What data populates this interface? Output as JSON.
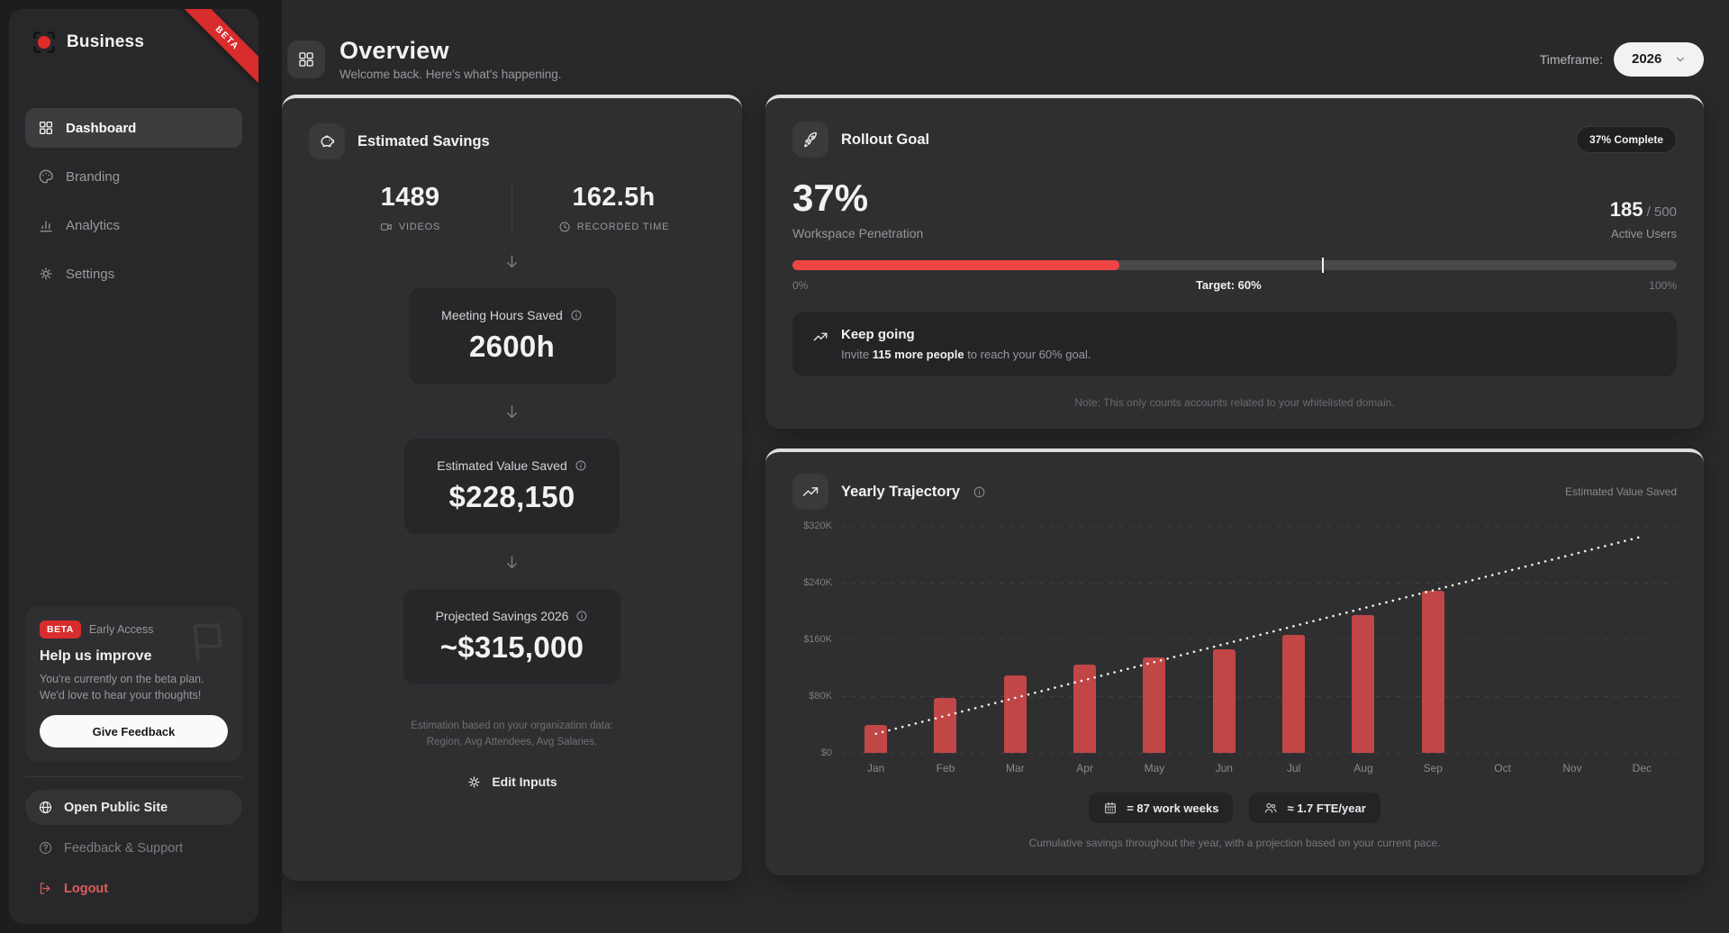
{
  "brand": {
    "name": "Business",
    "ribbon": "BETA"
  },
  "sidebar": {
    "items": [
      {
        "label": "Dashboard"
      },
      {
        "label": "Branding"
      },
      {
        "label": "Analytics"
      },
      {
        "label": "Settings"
      }
    ],
    "beta_card": {
      "badge": "BETA",
      "tag": "Early Access",
      "title": "Help us improve",
      "body": "You're currently on the beta plan. We'd love to hear your thoughts!",
      "button": "Give Feedback"
    },
    "footer": {
      "open_public_site": "Open Public Site",
      "feedback_support": "Feedback & Support",
      "logout": "Logout"
    }
  },
  "header": {
    "title": "Overview",
    "subtitle": "Welcome back. Here's what's happening.",
    "timeframe_label": "Timeframe:",
    "timeframe_value": "2026"
  },
  "estimated_savings": {
    "title": "Estimated Savings",
    "stats": [
      {
        "value": "1489",
        "label": "VIDEOS"
      },
      {
        "value": "162.5h",
        "label": "RECORDED TIME"
      }
    ],
    "boxes": [
      {
        "label": "Meeting Hours Saved",
        "value": "2600h"
      },
      {
        "label": "Estimated Value Saved",
        "value": "$228,150"
      },
      {
        "label": "Projected Savings 2026",
        "value": "~$315,000"
      }
    ],
    "footnote_line1": "Estimation based on your organization data:",
    "footnote_line2": "Region, Avg Attendees, Avg Salaries.",
    "edit_button": "Edit Inputs"
  },
  "rollout_goal": {
    "title": "Rollout Goal",
    "badge": "37% Complete",
    "percent": "37%",
    "percent_label": "Workspace Penetration",
    "active_users_value": "185",
    "active_users_total": " / 500",
    "active_users_label": "Active Users",
    "progress_percent": 37,
    "target_percent": 60,
    "scale_min": "0%",
    "target_label": "Target: 60%",
    "scale_max": "100%",
    "tip_title": "Keep going",
    "tip_prefix": "Invite ",
    "tip_bold": "115 more people",
    "tip_suffix": " to reach your 60% goal.",
    "note": "Note: This only counts accounts related to your whitelisted domain."
  },
  "trajectory": {
    "title": "Yearly Trajectory",
    "right_label": "Estimated Value Saved",
    "badges": [
      {
        "text": "= 87 work weeks"
      },
      {
        "text": "≈ 1.7 FTE/year"
      }
    ],
    "caption": "Cumulative savings throughout the year, with a projection based on your current pace."
  },
  "chart_data": {
    "type": "bar",
    "title": "Yearly Trajectory",
    "ylabel": "Estimated Value Saved ($K)",
    "categories": [
      "Jan",
      "Feb",
      "Mar",
      "Apr",
      "May",
      "Jun",
      "Jul",
      "Aug",
      "Sep",
      "Oct",
      "Nov",
      "Dec"
    ],
    "series": [
      {
        "name": "Cumulative savings ($K)",
        "type": "bar",
        "values": [
          40,
          78,
          109,
          124,
          134,
          146,
          167,
          194,
          228,
          null,
          null,
          null
        ]
      },
      {
        "name": "Projection at current pace ($K)",
        "type": "dotted-line",
        "start": 27,
        "end": 305
      }
    ],
    "ylim": [
      0,
      320
    ],
    "yticks": [
      "$320K",
      "$240K",
      "$160K",
      "$80K",
      "$0"
    ],
    "grid": true,
    "legend": false,
    "bar_color": "#c14646",
    "line_color": "#f0f0f0"
  },
  "colors": {
    "accent_red": "#ef4444",
    "bar_red": "#c14646",
    "ribbon_red": "#d92c2c"
  }
}
